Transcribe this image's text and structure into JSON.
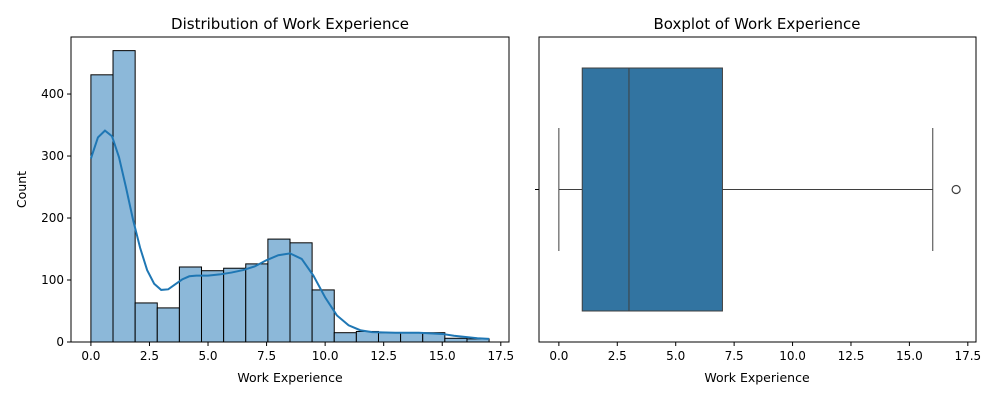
{
  "chart_data": [
    {
      "type": "histogram",
      "title": "Distribution of Work Experience",
      "xlabel": "Work Experience",
      "ylabel": "Count",
      "xlim": [
        -0.85,
        17.85
      ],
      "ylim": [
        0,
        492
      ],
      "xticks": [
        0,
        2.5,
        5,
        7.5,
        10,
        12.5,
        15,
        17.5
      ],
      "xtick_labels": [
        "0.0",
        "2.5",
        "5.0",
        "7.5",
        "10.0",
        "12.5",
        "15.0",
        "17.5"
      ],
      "yticks": [
        0,
        100,
        200,
        300,
        400
      ],
      "ytick_labels": [
        "0",
        "100",
        "200",
        "300",
        "400"
      ],
      "bar_color": "#8cb8d9",
      "kde_color": "#1f77b4",
      "bins": {
        "edges": [
          0,
          0.944,
          1.889,
          2.833,
          3.778,
          4.722,
          5.667,
          6.611,
          7.556,
          8.5,
          9.444,
          10.389,
          11.333,
          12.278,
          13.222,
          14.167,
          15.111,
          16.056,
          17.0
        ],
        "counts": [
          431,
          470,
          63,
          55,
          121,
          115,
          119,
          126,
          166,
          160,
          84,
          15,
          17,
          15,
          15,
          15,
          6,
          5
        ]
      },
      "kde": {
        "x": [
          0,
          0.3,
          0.6,
          0.9,
          1.2,
          1.5,
          1.8,
          2.1,
          2.4,
          2.7,
          3.0,
          3.3,
          3.6,
          3.9,
          4.2,
          4.5,
          5.0,
          5.5,
          6.0,
          6.5,
          7.0,
          7.5,
          8.0,
          8.5,
          9.0,
          9.5,
          10.0,
          10.5,
          11.0,
          11.5,
          12.0,
          13.0,
          14.0,
          15.0,
          15.5,
          16.0,
          16.5,
          17.0
        ],
        "y": [
          296,
          330,
          341,
          332,
          298,
          249,
          197,
          152,
          116,
          94,
          84,
          85,
          93,
          101,
          106,
          107,
          107,
          109,
          112,
          116,
          122,
          132,
          140,
          143,
          134,
          107,
          72,
          43,
          27,
          19,
          16,
          15,
          15,
          13,
          10,
          8,
          6,
          5
        ]
      }
    },
    {
      "type": "boxplot",
      "title": "Boxplot of Work Experience",
      "xlabel": "Work Experience",
      "xlim": [
        -0.85,
        17.85
      ],
      "xticks": [
        0,
        2.5,
        5,
        7.5,
        10,
        12.5,
        15,
        17.5
      ],
      "xtick_labels": [
        "0.0",
        "2.5",
        "5.0",
        "7.5",
        "10.0",
        "12.5",
        "15.0",
        "17.5"
      ],
      "box_color": "#3274a1",
      "stats": {
        "whisker_low": 0,
        "q1": 1,
        "median": 3,
        "q3": 7,
        "whisker_high": 16,
        "outliers": [
          17
        ]
      }
    }
  ]
}
